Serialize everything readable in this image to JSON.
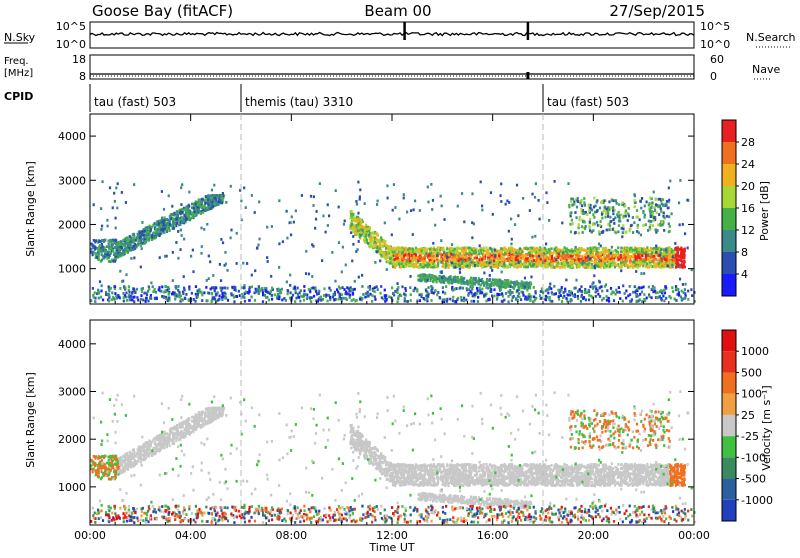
{
  "header": {
    "radar": "Goose Bay (fitACF)",
    "beam": "Beam 00",
    "date": "27/Sep/2015"
  },
  "summary_panel": {
    "left_labels": {
      "nsky": "N.Sky",
      "nsky_top": "10^5",
      "nsky_bottom": "10^0",
      "freq": "Freq.",
      "freq_unit": "[MHz]",
      "freq_top": "18",
      "freq_bottom": "8",
      "cpid": "CPID"
    },
    "right_labels": {
      "nsearch": "N.Search",
      "nsearch_top": "10^5",
      "nsearch_bottom": "10^0",
      "nave": "Nave",
      "nave_top": "60",
      "nave_bottom": "0"
    },
    "cpid_segments": [
      {
        "label": "tau (fast) 503",
        "start_hour": 0
      },
      {
        "label": "themis (tau) 3310",
        "start_hour": 6
      },
      {
        "label": "tau (fast) 503",
        "start_hour": 18
      }
    ]
  },
  "chart_data": [
    {
      "type": "heatmap",
      "name": "Power",
      "ylabel": "Slant Range [km]",
      "ylim": [
        200,
        4500
      ],
      "yticks": [
        "1000",
        "2000",
        "3000",
        "4000"
      ],
      "xlim_hours": [
        0,
        24
      ],
      "colorbar": {
        "label": "Power [dB]",
        "ticks": [
          "4",
          "8",
          "12",
          "16",
          "20",
          "24",
          "28"
        ],
        "colors": [
          "#1a1aff",
          "#2a4fb0",
          "#3a8a8a",
          "#45b048",
          "#a8d838",
          "#f0b020",
          "#f07020",
          "#e82020"
        ]
      },
      "features": [
        {
          "desc": "arc 01:00-05:00",
          "x_hours": [
            1.0,
            5.0
          ],
          "range_km": [
            1300,
            2600
          ],
          "level": "moderate"
        },
        {
          "desc": "band 10:00-23:30",
          "x_hours": [
            10.5,
            23.5
          ],
          "range_km": [
            1100,
            1500
          ],
          "level": "strong"
        },
        {
          "desc": "near-range clutter",
          "x_hours": [
            0,
            24
          ],
          "range_km": [
            300,
            500
          ],
          "level": "weak"
        }
      ]
    },
    {
      "type": "heatmap",
      "name": "Velocity",
      "ylabel": "Slant Range [km]",
      "ylim": [
        200,
        4500
      ],
      "yticks": [
        "1000",
        "2000",
        "3000",
        "4000"
      ],
      "xlim_hours": [
        0,
        24
      ],
      "colorbar": {
        "label": "Velocity [m s⁻¹]",
        "ticks": [
          "1000",
          "500",
          "100",
          "25",
          "-25",
          "-100",
          "-500",
          "-1000"
        ],
        "colors": [
          "#2040c0",
          "#2a60a0",
          "#3a8a60",
          "#40c040",
          "#c8c8c8",
          "#f0a040",
          "#f07020",
          "#e83020",
          "#e01010"
        ]
      }
    }
  ],
  "x_axis": {
    "label": "Time UT",
    "ticks": [
      "00:00",
      "04:00",
      "08:00",
      "12:00",
      "16:00",
      "20:00",
      "00:00"
    ]
  }
}
